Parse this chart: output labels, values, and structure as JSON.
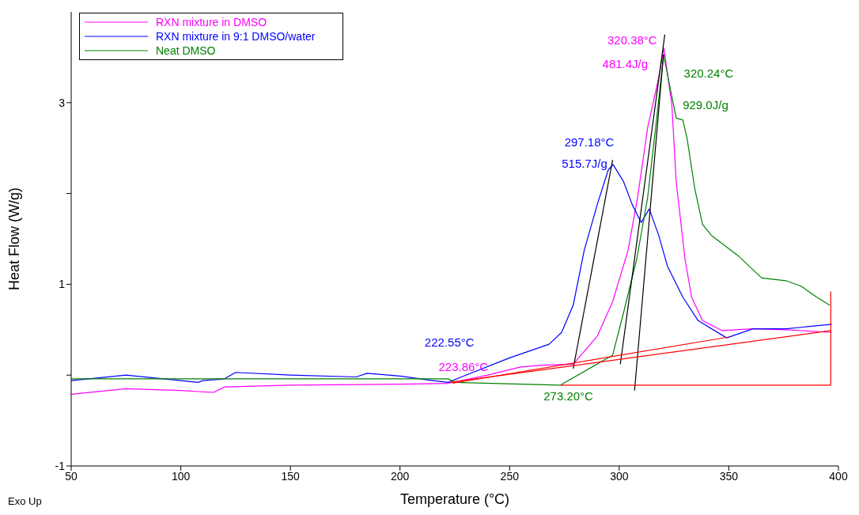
{
  "chart_data": {
    "type": "line",
    "xlabel": "Temperature (°C)",
    "ylabel": "Heat Flow (W/g)",
    "xlim": [
      50,
      400
    ],
    "xticks": [
      50,
      100,
      150,
      200,
      250,
      300,
      350,
      400
    ],
    "ylim": [
      -1,
      4
    ],
    "yticks": [
      -1,
      {
        "value": 0,
        "label": null
      },
      1,
      {
        "value": 2,
        "label": null
      },
      3
    ],
    "legend": "top left",
    "marker": "none",
    "line_style": "solid",
    "series": [
      {
        "name": "RXN mixture in DMSO",
        "color": "#ff00ff",
        "x": [
          50,
          75,
          100,
          115,
          120,
          150,
          200,
          222,
          240,
          255,
          265,
          279,
          290,
          297,
          304,
          308.4,
          313,
          317.7,
          320.38,
          324,
          326,
          330,
          333,
          338,
          347,
          361,
          376,
          397
        ],
        "values": [
          -0.21,
          -0.15,
          -0.17,
          -0.19,
          -0.13,
          -0.11,
          -0.1,
          -0.09,
          0.0,
          0.09,
          0.11,
          0.12,
          0.43,
          0.81,
          1.37,
          1.96,
          2.73,
          3.24,
          3.6,
          2.98,
          2.13,
          1.28,
          0.86,
          0.6,
          0.49,
          0.51,
          0.5,
          0.47
        ]
      },
      {
        "name": "RXN mixture in 9:1 DMSO/water",
        "color": "#0000ff",
        "x": [
          50,
          75,
          100,
          108,
          110,
          120,
          125,
          150,
          180,
          185,
          200,
          215,
          222,
          230,
          250,
          268,
          273.7,
          279,
          284,
          290,
          295,
          297.18,
          302,
          305.9,
          310,
          313.7,
          318,
          322,
          329,
          336,
          349,
          361,
          376,
          397
        ],
        "values": [
          -0.06,
          0.0,
          -0.06,
          -0.08,
          -0.06,
          -0.04,
          0.03,
          0.0,
          -0.02,
          0.02,
          -0.01,
          -0.06,
          -0.08,
          0.0,
          0.19,
          0.34,
          0.47,
          0.77,
          1.37,
          1.88,
          2.26,
          2.32,
          2.13,
          1.88,
          1.68,
          1.83,
          1.54,
          1.2,
          0.86,
          0.6,
          0.41,
          0.51,
          0.51,
          0.56
        ]
      },
      {
        "name": "Neat DMSO",
        "color": "#008000",
        "x": [
          50,
          222,
          225,
          273.2,
          297,
          302,
          308,
          313,
          317,
          320.24,
          324,
          326,
          329,
          331,
          334.5,
          338,
          342,
          354,
          365,
          376,
          383,
          390,
          396
        ],
        "values": [
          -0.04,
          -0.04,
          -0.08,
          -0.11,
          0.22,
          0.69,
          1.28,
          1.96,
          2.81,
          3.53,
          3.07,
          2.83,
          2.81,
          2.6,
          2.05,
          1.66,
          1.54,
          1.32,
          1.07,
          1.04,
          0.98,
          0.86,
          0.77
        ]
      },
      {
        "color": "#000000",
        "x": [
          279,
          297
        ],
        "values": [
          0.07,
          2.37
        ]
      },
      {
        "color": "#000000",
        "x": [
          300.5,
          320.8
        ],
        "values": [
          0.12,
          3.75
        ]
      },
      {
        "color": "#000000",
        "x": [
          307,
          320.2
        ],
        "values": [
          -0.17,
          3.53
        ]
      },
      {
        "color": "#ff0000",
        "x": [
          222.55,
          396.5
        ],
        "values": [
          -0.08,
          0.49
        ]
      },
      {
        "color": "#ff0000",
        "x": [
          223.86,
          350
        ],
        "values": [
          -0.09,
          0.42
        ]
      },
      {
        "color": "#ff0000",
        "x": [
          273.2,
          396.5,
          396.5
        ],
        "values": [
          -0.11,
          -0.11,
          0.92
        ]
      }
    ],
    "annotations": [
      "Exo Up",
      {
        "text": "320.38°C",
        "x": 320.38,
        "y": 3.6
      },
      "481.4J/g",
      {
        "text": "320.24°C",
        "x": 320.24,
        "y": 3.53
      },
      "929.0J/g",
      {
        "text": "297.18°C",
        "x": 297.18,
        "y": 2.32
      },
      "515.7J/g",
      {
        "text": "222.55°C",
        "x": 222.55,
        "y": -0.075
      },
      {
        "text": "223.86°C",
        "x": 223.86,
        "y": -0.09
      },
      {
        "text": "273.20°C",
        "x": 273.2,
        "y": -0.11
      }
    ]
  }
}
